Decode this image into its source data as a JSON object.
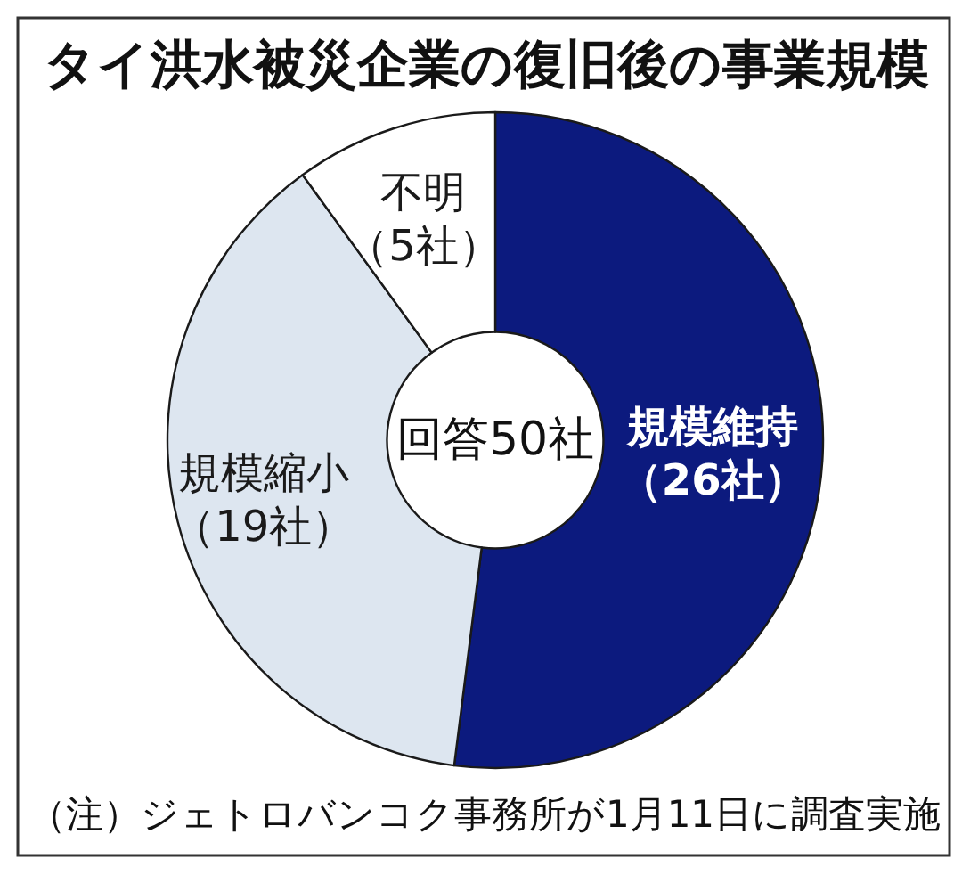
{
  "chart_data": {
    "type": "donut",
    "title": "タイ洪水被災企業の復旧後の事業規模",
    "categories": [
      "規模維持",
      "規模縮小",
      "不明"
    ],
    "values": [
      26,
      19,
      5
    ],
    "colors": [
      "#0c1a7e",
      "#dde6f0",
      "#ffffff"
    ],
    "value_labels": [
      "（26社）",
      "（19社）",
      "（5社）"
    ],
    "annotations": [
      "回答50社",
      "（注）ジェトロバンコク事務所が1月11日に調査実施"
    ]
  }
}
